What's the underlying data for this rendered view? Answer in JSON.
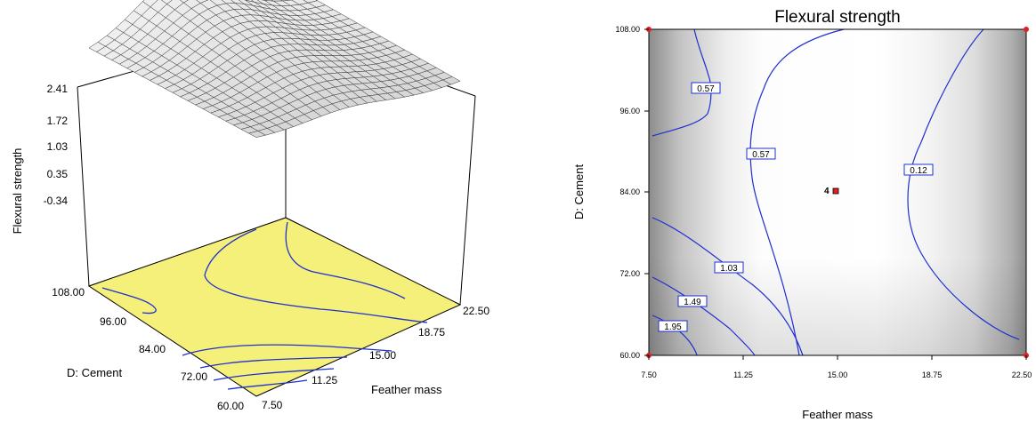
{
  "chart_data": [
    {
      "type": "surface",
      "title": "",
      "xlabel": "Feather mass",
      "ylabel": "D: Cement",
      "zlabel": "Flexural strength",
      "x_ticks": [
        "7.50",
        "11.25",
        "15.00",
        "18.75",
        "22.50"
      ],
      "y_ticks": [
        "60.00",
        "72.00",
        "84.00",
        "96.00",
        "108.00"
      ],
      "z_ticks": [
        "-0.34",
        "0.35",
        "1.03",
        "1.72",
        "2.41"
      ],
      "xlim": [
        7.5,
        22.5
      ],
      "ylim": [
        60,
        108
      ],
      "zlim": [
        -0.34,
        2.41
      ],
      "floor_color": "#f5f07a",
      "contour_color": "#1f2fd0"
    },
    {
      "type": "contour",
      "title": "Flexural strength",
      "xlabel": "Feather mass",
      "ylabel": "D: Cement",
      "x_ticks": [
        "7.50",
        "11.25",
        "15.00",
        "18.75",
        "22.50"
      ],
      "y_ticks": [
        "60.00",
        "72.00",
        "84.00",
        "96.00",
        "108.00"
      ],
      "xlim": [
        7.5,
        22.5
      ],
      "ylim": [
        60,
        108
      ],
      "contour_labels": [
        "0.57",
        "0.57",
        "0.12",
        "1.03",
        "1.49",
        "1.95"
      ],
      "center_point": {
        "label": "4",
        "x": 15.0,
        "y": 84.0
      },
      "contour_color": "#1f2fd0",
      "design_point_color": "#e02020"
    }
  ]
}
